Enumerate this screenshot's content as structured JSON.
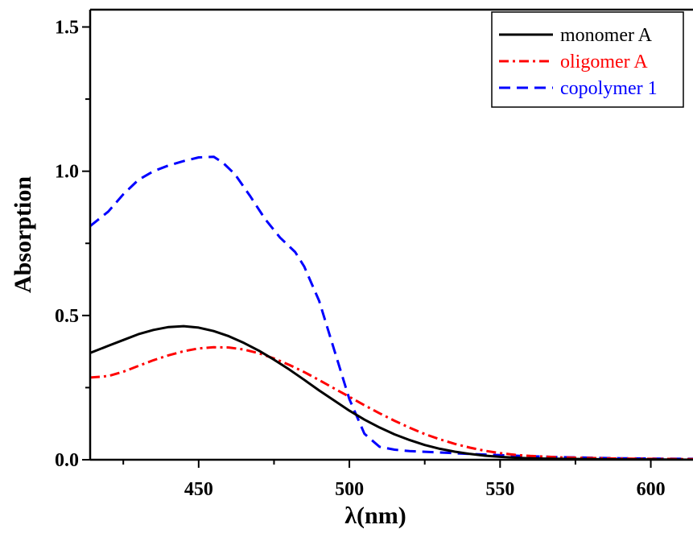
{
  "chart_data": {
    "type": "line",
    "xlabel": "λ(nm)",
    "ylabel": "Absorption",
    "xlim": [
      414,
      614
    ],
    "ylim": [
      0,
      1.56
    ],
    "x_ticks": [
      450,
      500,
      550,
      600
    ],
    "y_ticks": [
      0.0,
      0.5,
      1.0,
      1.5
    ],
    "x_tick_labels": [
      "450",
      "500",
      "550",
      "600"
    ],
    "y_tick_labels": [
      "0.0",
      "0.5",
      "1.0",
      "1.5"
    ],
    "grid": false,
    "legend_position": "top-right",
    "series": [
      {
        "name": "monomer A",
        "color": "#000000",
        "dash": "solid",
        "x": [
          414,
          420,
          425,
          430,
          435,
          440,
          445,
          450,
          455,
          460,
          465,
          470,
          475,
          480,
          485,
          490,
          495,
          500,
          505,
          510,
          515,
          520,
          525,
          530,
          535,
          540,
          545,
          550,
          555,
          560,
          565,
          570,
          580,
          590,
          600,
          614
        ],
        "y": [
          0.37,
          0.395,
          0.415,
          0.435,
          0.45,
          0.46,
          0.463,
          0.458,
          0.446,
          0.428,
          0.405,
          0.378,
          0.347,
          0.313,
          0.277,
          0.24,
          0.205,
          0.17,
          0.139,
          0.112,
          0.088,
          0.068,
          0.051,
          0.038,
          0.028,
          0.02,
          0.014,
          0.01,
          0.007,
          0.005,
          0.004,
          0.003,
          0.002,
          0.001,
          0.001,
          0.0
        ]
      },
      {
        "name": "oligomer A",
        "color": "#ff0000",
        "dash": "dashdot",
        "x": [
          414,
          420,
          425,
          430,
          435,
          440,
          445,
          450,
          455,
          460,
          465,
          470,
          475,
          480,
          485,
          490,
          495,
          500,
          505,
          510,
          515,
          520,
          525,
          530,
          535,
          540,
          545,
          550,
          555,
          560,
          570,
          580,
          590,
          600,
          614
        ],
        "y": [
          0.285,
          0.29,
          0.305,
          0.325,
          0.345,
          0.362,
          0.376,
          0.386,
          0.39,
          0.389,
          0.382,
          0.369,
          0.351,
          0.329,
          0.304,
          0.276,
          0.247,
          0.218,
          0.189,
          0.161,
          0.135,
          0.111,
          0.089,
          0.071,
          0.055,
          0.042,
          0.031,
          0.023,
          0.017,
          0.013,
          0.008,
          0.006,
          0.004,
          0.003,
          0.002
        ]
      },
      {
        "name": "copolymer 1",
        "color": "#0000ff",
        "dash": "dashed",
        "x": [
          414,
          420,
          425,
          430,
          435,
          440,
          445,
          450,
          455,
          458,
          462,
          467,
          472,
          477,
          482,
          485,
          490,
          495,
          500,
          505,
          510,
          515,
          520,
          530,
          540,
          550,
          560,
          570,
          580,
          590,
          600,
          614
        ],
        "y": [
          0.81,
          0.86,
          0.92,
          0.97,
          1.0,
          1.02,
          1.035,
          1.048,
          1.05,
          1.03,
          0.99,
          0.915,
          0.835,
          0.77,
          0.72,
          0.67,
          0.55,
          0.38,
          0.21,
          0.09,
          0.045,
          0.035,
          0.03,
          0.025,
          0.02,
          0.016,
          0.012,
          0.009,
          0.007,
          0.005,
          0.004,
          0.003
        ]
      }
    ]
  }
}
